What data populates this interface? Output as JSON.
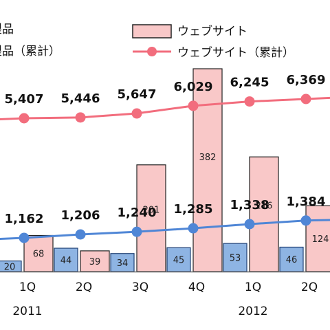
{
  "chart_data": {
    "type": "bar",
    "categories": [
      "1Q",
      "2Q",
      "3Q",
      "4Q",
      "1Q",
      "2Q",
      ""
    ],
    "years": [
      {
        "label": "2011",
        "index": 0
      },
      {
        "label": "2012",
        "index": 4
      }
    ],
    "series": [
      {
        "name": "製品",
        "kind": "bar",
        "values": [
          20,
          44,
          34,
          45,
          53,
          46,
          null
        ],
        "color": "#8eb4e3",
        "partial_name": true
      },
      {
        "name": "ウェブサイト",
        "kind": "bar",
        "values": [
          68,
          39,
          201,
          382,
          216,
          124,
          null
        ],
        "color": "#f9c8c8"
      },
      {
        "name": "製品（累計）",
        "kind": "line",
        "values": [
          1162,
          1206,
          1240,
          1285,
          1338,
          1384,
          1400
        ],
        "labels": [
          "1,162",
          "1,206",
          "1,240",
          "1,285",
          "1,338",
          "1,384",
          ""
        ],
        "color": "#4f86d6",
        "partial_name": true
      },
      {
        "name": "ウェブサイト（累計）",
        "kind": "line",
        "values": [
          5407,
          5446,
          5647,
          6029,
          6245,
          6369,
          6500
        ],
        "labels": [
          "5,407",
          "5,446",
          "5,647",
          "6,029",
          "6,245",
          "6,369",
          ""
        ],
        "color": "#f26d7d"
      }
    ],
    "bar_labels": {
      "製品": [
        "20",
        "44",
        "34",
        "45",
        "53",
        "46",
        ""
      ],
      "ウェブサイト": [
        "68",
        "39",
        "201",
        "382",
        "216",
        "124",
        ""
      ]
    },
    "legend": {
      "left_items": [
        "製品",
        "製品（累計）"
      ],
      "right_items": [
        "ウェブサイト",
        "ウェブサイト（累計）"
      ]
    },
    "bar_ylim": [
      0,
      400
    ],
    "grid": false
  }
}
